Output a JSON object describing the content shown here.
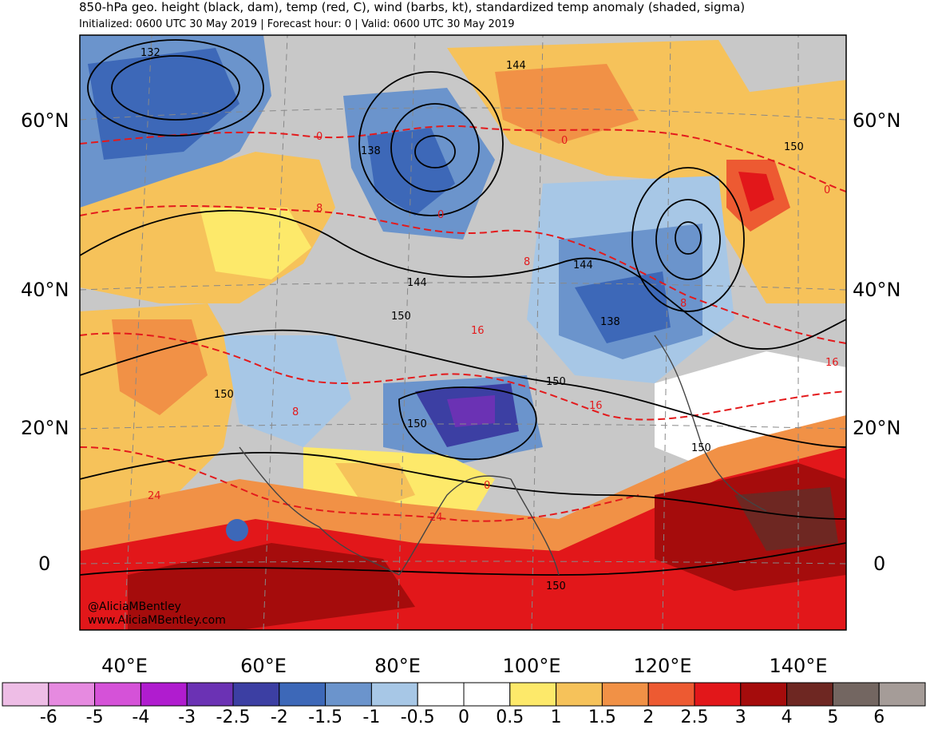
{
  "header": {
    "title": "850-hPa geo. height (black, dam), temp (red, C), wind (barbs, kt), standardized temp anomaly (shaded, sigma)",
    "subtitle": "Initialized: 0600 UTC 30 May 2019 | Forecast hour: 0 | Valid: 0600 UTC 30 May 2019"
  },
  "axes": {
    "lat_labels": [
      "60°N",
      "40°N",
      "20°N",
      "0"
    ],
    "lon_labels": [
      "40°E",
      "60°E",
      "80°E",
      "100°E",
      "120°E",
      "140°E"
    ]
  },
  "map": {
    "watermark_handle": "@AliciaMBentley",
    "watermark_site": "www.AliciaMBentley.com",
    "height_labels": [
      "132",
      "144",
      "138",
      "150",
      "144",
      "150",
      "144",
      "138",
      "150",
      "150",
      "150",
      "150",
      "150"
    ],
    "temp_labels": [
      "0",
      "8",
      "0",
      "0",
      "8",
      "16",
      "16",
      "24",
      "8",
      "16",
      "0",
      "24",
      "0",
      "8"
    ]
  },
  "colorbar": {
    "ticks": [
      "-6",
      "-5",
      "-4",
      "-3",
      "-2.5",
      "-2",
      "-1.5",
      "-1",
      "-0.5",
      "0",
      "0.5",
      "1",
      "1.5",
      "2",
      "2.5",
      "3",
      "4",
      "5",
      "6"
    ],
    "colors": [
      "#eebde6",
      "#e68ae0",
      "#d552d8",
      "#b01ccf",
      "#6b32b4",
      "#3c3fa3",
      "#3d68b8",
      "#6b94cc",
      "#a7c7e6",
      "#ffffff",
      "#ffffff",
      "#fde96a",
      "#f6c25a",
      "#f19146",
      "#ed5a32",
      "#e2171a",
      "#a50c0c",
      "#6e2722",
      "#736661",
      "#a59c98"
    ]
  },
  "colors": {
    "heights": "#000000",
    "temperature": "#e31a1c",
    "land_neutral": "#c8c8c8"
  }
}
